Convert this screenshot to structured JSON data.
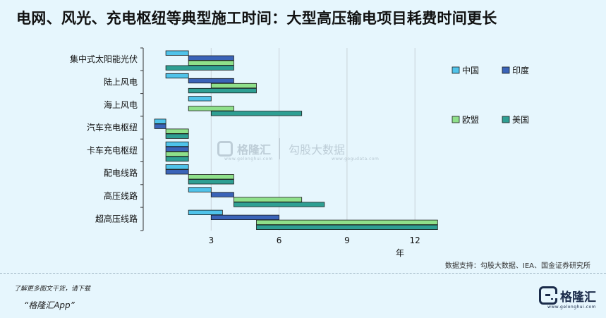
{
  "title": "电网、风光、充电枢纽等典型施工时间：大型高压输电项目耗费时间更长",
  "source": "数据支持：勾股大数据、IEA、国金证券研究所",
  "footer": {
    "line1": "了解更多图文干货，请下载",
    "line2": "“格隆汇App”"
  },
  "logo": {
    "name": "格隆汇",
    "url": "www.gelonghui.com"
  },
  "watermark": {
    "brand1": "格隆汇",
    "brand2": "勾股大数据",
    "url1": "www.gelonghui.com",
    "url2": "www.gogudata.com"
  },
  "chart_data": {
    "type": "bar",
    "orientation": "horizontal-range",
    "categories": [
      "集中式太阳能光伏",
      "陆上风电",
      "海上风电",
      "汽车充电枢纽",
      "卡车充电枢纽",
      "配电线路",
      "高压线路",
      "超高压线路"
    ],
    "xlabel": "年",
    "xlim": [
      0,
      13
    ],
    "xticks": [
      3,
      6,
      9,
      12
    ],
    "grid": "vertical",
    "legend_placement": "right",
    "series": [
      {
        "name": "中国",
        "color": "#4fc3ea",
        "ranges": [
          [
            1,
            2
          ],
          [
            1,
            2
          ],
          [
            2,
            3
          ],
          [
            0.5,
            1
          ],
          [
            1,
            2
          ],
          [
            1,
            2
          ],
          [
            2,
            3
          ],
          [
            2,
            3.5
          ]
        ]
      },
      {
        "name": "印度",
        "color": "#3a63b8",
        "ranges": [
          [
            2,
            4
          ],
          [
            2,
            4
          ],
          [
            2,
            2
          ],
          [
            0.5,
            1
          ],
          [
            1,
            2
          ],
          [
            1,
            2
          ],
          [
            3,
            4
          ],
          [
            3,
            6
          ]
        ]
      },
      {
        "name": "欧盟",
        "color": "#8fe08a",
        "ranges": [
          [
            2,
            4
          ],
          [
            3,
            5
          ],
          [
            2,
            4
          ],
          [
            1,
            2
          ],
          [
            1,
            2
          ],
          [
            2,
            4
          ],
          [
            4,
            7
          ],
          [
            5,
            13
          ]
        ]
      },
      {
        "name": "美国",
        "color": "#2e9f93",
        "ranges": [
          [
            1,
            4
          ],
          [
            2,
            5
          ],
          [
            3,
            7
          ],
          [
            1,
            2
          ],
          [
            1,
            2
          ],
          [
            2,
            4
          ],
          [
            4,
            8
          ],
          [
            5,
            13
          ]
        ]
      }
    ]
  }
}
